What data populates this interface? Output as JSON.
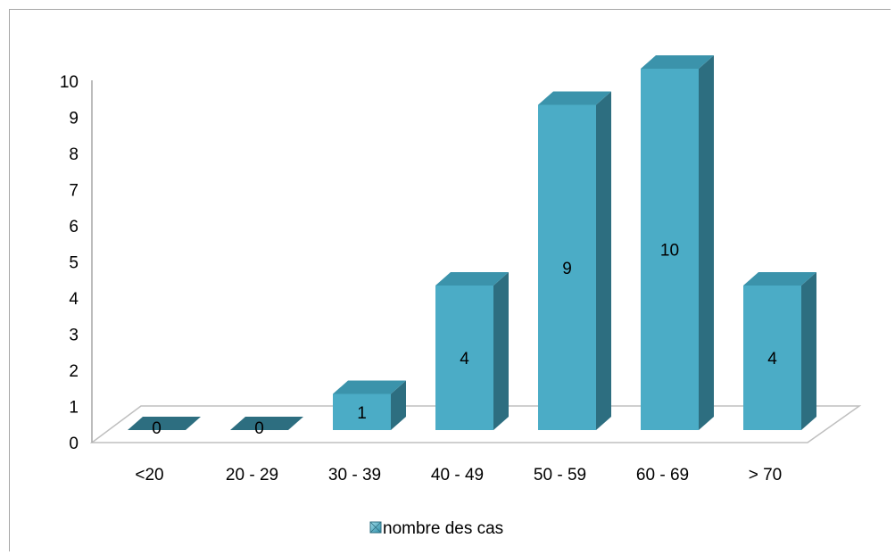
{
  "chart_data": {
    "type": "bar",
    "categories": [
      "<20",
      "20 - 29",
      "30 - 39",
      "40 - 49",
      "50 - 59",
      "60 - 69",
      "> 70"
    ],
    "series": [
      {
        "name": "nombre des cas",
        "values": [
          0,
          0,
          1,
          4,
          9,
          10,
          4
        ]
      }
    ],
    "data_labels": [
      "0",
      "0",
      "1",
      "4",
      "9",
      "10",
      "4"
    ],
    "yticks": [
      "0",
      "1",
      "2",
      "3",
      "4",
      "5",
      "6",
      "7",
      "8",
      "9",
      "10"
    ],
    "ylim": [
      0,
      10
    ],
    "grid": false,
    "legend_position": "bottom",
    "style": "3d-column",
    "colors": {
      "front": "#4bacc6",
      "top": "#3b93ab",
      "side": "#2d6e80",
      "floor_edge": "#bfbfbf",
      "axis": "#a6a6a6"
    }
  }
}
